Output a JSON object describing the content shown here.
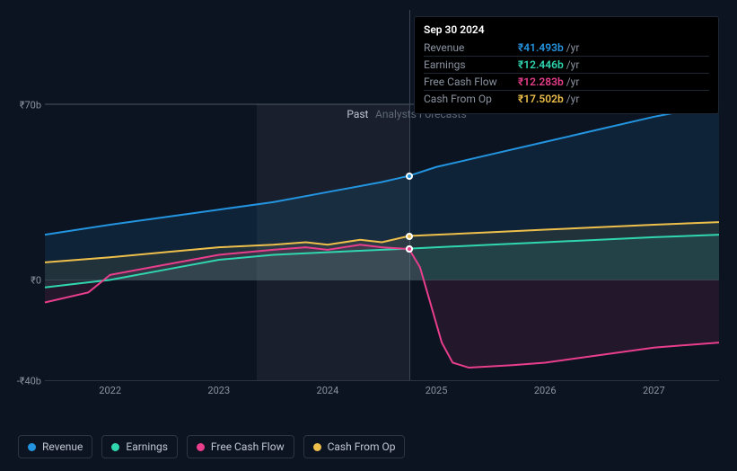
{
  "chart": {
    "type": "area-line",
    "background_color": "#0d1421",
    "grid_color": "#2a3442",
    "y": {
      "min": -40,
      "max": 70,
      "ticks": [
        {
          "v": 70,
          "label": "₹70b"
        },
        {
          "v": 0,
          "label": "₹0"
        },
        {
          "v": -40,
          "label": "-₹40b"
        }
      ]
    },
    "x": {
      "min": 2021.4,
      "max": 2027.6,
      "ticks": [
        2022,
        2023,
        2024,
        2025,
        2026,
        2027
      ]
    },
    "now_x": 2024.75,
    "highlight_band": {
      "start": 2023.35,
      "end": 2024.75
    },
    "past_label": "Past",
    "forecast_label": "Analysts Forecasts",
    "series": [
      {
        "key": "revenue",
        "name": "Revenue",
        "color": "#2394df",
        "points": [
          [
            2021.4,
            18
          ],
          [
            2022,
            22
          ],
          [
            2022.5,
            25
          ],
          [
            2023,
            28
          ],
          [
            2023.5,
            31
          ],
          [
            2024,
            35
          ],
          [
            2024.5,
            39
          ],
          [
            2024.75,
            41.5
          ],
          [
            2025,
            45
          ],
          [
            2025.5,
            50
          ],
          [
            2026,
            55
          ],
          [
            2026.5,
            60
          ],
          [
            2027,
            65
          ],
          [
            2027.6,
            70
          ]
        ],
        "fill_opacity": 0.12
      },
      {
        "key": "earnings",
        "name": "Earnings",
        "color": "#30d6b0",
        "points": [
          [
            2021.4,
            -3
          ],
          [
            2021.8,
            -1
          ],
          [
            2022,
            0
          ],
          [
            2022.5,
            4
          ],
          [
            2023,
            8
          ],
          [
            2023.5,
            10
          ],
          [
            2024,
            11
          ],
          [
            2024.5,
            12
          ],
          [
            2024.75,
            12.45
          ],
          [
            2025,
            13
          ],
          [
            2025.5,
            14
          ],
          [
            2026,
            15
          ],
          [
            2026.5,
            16
          ],
          [
            2027,
            17
          ],
          [
            2027.6,
            18
          ]
        ],
        "fill_opacity": 0.1
      },
      {
        "key": "fcf",
        "name": "Free Cash Flow",
        "color": "#e83e8c",
        "points": [
          [
            2021.4,
            -9
          ],
          [
            2021.8,
            -5
          ],
          [
            2022,
            2
          ],
          [
            2022.5,
            6
          ],
          [
            2023,
            10
          ],
          [
            2023.5,
            12
          ],
          [
            2023.8,
            13
          ],
          [
            2024,
            12
          ],
          [
            2024.3,
            14
          ],
          [
            2024.5,
            13
          ],
          [
            2024.75,
            12.28
          ],
          [
            2024.85,
            5
          ],
          [
            2024.95,
            -10
          ],
          [
            2025.05,
            -25
          ],
          [
            2025.15,
            -33
          ],
          [
            2025.3,
            -35
          ],
          [
            2025.7,
            -34
          ],
          [
            2026,
            -33
          ],
          [
            2026.5,
            -30
          ],
          [
            2027,
            -27
          ],
          [
            2027.6,
            -25
          ]
        ],
        "fill_opacity": 0.1
      },
      {
        "key": "cfo",
        "name": "Cash From Op",
        "color": "#eec04b",
        "points": [
          [
            2021.4,
            7
          ],
          [
            2022,
            9
          ],
          [
            2022.5,
            11
          ],
          [
            2023,
            13
          ],
          [
            2023.5,
            14
          ],
          [
            2023.8,
            15
          ],
          [
            2024,
            14
          ],
          [
            2024.3,
            16
          ],
          [
            2024.5,
            15
          ],
          [
            2024.75,
            17.5
          ],
          [
            2025,
            18
          ],
          [
            2025.5,
            19
          ],
          [
            2026,
            20
          ],
          [
            2026.5,
            21
          ],
          [
            2027,
            22
          ],
          [
            2027.6,
            23
          ]
        ],
        "fill_opacity": 0.1
      }
    ]
  },
  "tooltip": {
    "date": "Sep 30 2024",
    "unit_suffix": "/yr",
    "rows": [
      {
        "name": "Revenue",
        "value": "₹41.493b",
        "color": "#2394df"
      },
      {
        "name": "Earnings",
        "value": "₹12.446b",
        "color": "#30d6b0"
      },
      {
        "name": "Free Cash Flow",
        "value": "₹12.283b",
        "color": "#e83e8c"
      },
      {
        "name": "Cash From Op",
        "value": "₹17.502b",
        "color": "#eec04b"
      }
    ]
  },
  "legend": [
    {
      "name": "Revenue",
      "color": "#2394df"
    },
    {
      "name": "Earnings",
      "color": "#30d6b0"
    },
    {
      "name": "Free Cash Flow",
      "color": "#e83e8c"
    },
    {
      "name": "Cash From Op",
      "color": "#eec04b"
    }
  ]
}
